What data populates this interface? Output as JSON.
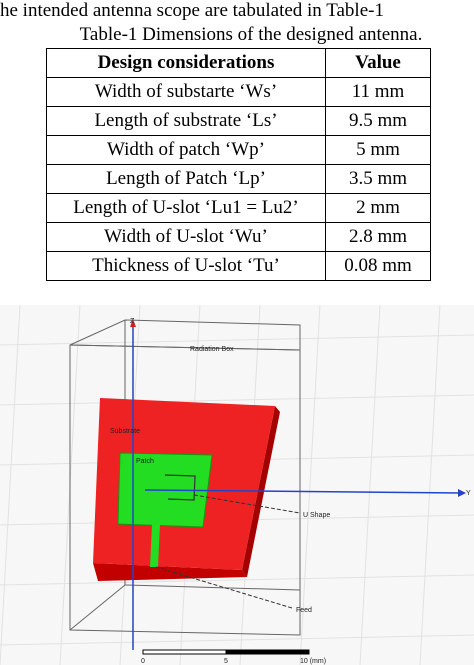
{
  "document": {
    "intro": "he intended antenna scope are tabulated in Table-1"
  },
  "table": {
    "caption": "Table-1 Dimensions of the designed antenna.",
    "header": [
      "Design considerations",
      "Value"
    ],
    "rows": [
      [
        "Width of substarte ‘Ws’",
        "11 mm"
      ],
      [
        "Length of substrate ‘Ls’",
        "9.5 mm"
      ],
      [
        "Width of patch ‘Wp’",
        "5 mm"
      ],
      [
        "Length of Patch ‘Lp’",
        "3.5 mm"
      ],
      [
        "Length of U-slot ‘Lu1 = Lu2’",
        "2 mm"
      ],
      [
        "Width of U-slot ‘Wu’",
        "2.8 mm"
      ],
      [
        "Thickness of U-slot ‘Tu’",
        "0.08 mm"
      ]
    ]
  },
  "figure": {
    "labels": {
      "radiation_box": "Radiation Box",
      "substrate": "Substrate",
      "patch": "Patch",
      "u_shape": "U Shape",
      "feed": "Feed",
      "z_axis": "Z",
      "y_axis": "Y"
    },
    "scale": [
      "0",
      "5",
      "10 (mm)"
    ]
  }
}
